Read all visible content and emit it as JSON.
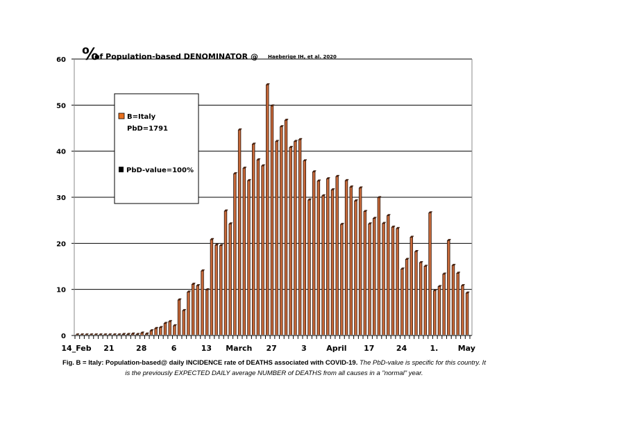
{
  "chart_data": {
    "type": "bar",
    "title_symbol": "%",
    "title": "of Population-based DENOMINATOR @",
    "title_citation": "Haeberige IH, et al. 2020",
    "ylim": [
      0,
      60
    ],
    "yticks": [
      0,
      10,
      20,
      30,
      40,
      50,
      60
    ],
    "grid": true,
    "xtick_labels": [
      {
        "index": 0,
        "label": "14_Feb"
      },
      {
        "index": 7,
        "label": "21"
      },
      {
        "index": 14,
        "label": "28"
      },
      {
        "index": 21,
        "label": "6"
      },
      {
        "index": 28,
        "label": "13"
      },
      {
        "index": 35,
        "label": "March"
      },
      {
        "index": 42,
        "label": "27"
      },
      {
        "index": 49,
        "label": "3"
      },
      {
        "index": 56,
        "label": "April"
      },
      {
        "index": 63,
        "label": "17"
      },
      {
        "index": 70,
        "label": "24"
      },
      {
        "index": 77,
        "label": "1."
      },
      {
        "index": 84,
        "label": "May"
      }
    ],
    "values": [
      0,
      0,
      0,
      0,
      0,
      0,
      0,
      0,
      0.1,
      0.1,
      0.2,
      0.2,
      0.3,
      0.2,
      0.5,
      0.3,
      1.0,
      1.5,
      1.7,
      2.6,
      3.0,
      2.1,
      7.7,
      5.4,
      9.4,
      11.1,
      10.8,
      14.0,
      9.9,
      20.8,
      19.6,
      19.5,
      27.0,
      24.2,
      35.1,
      44.6,
      36.3,
      33.6,
      41.5,
      38.1,
      36.8,
      54.4,
      49.8,
      42.1,
      45.3,
      46.7,
      40.8,
      42.1,
      42.5,
      37.9,
      29.4,
      35.5,
      33.5,
      30.3,
      34.0,
      31.6,
      34.5,
      24.1,
      33.6,
      32.2,
      29.2,
      32.0,
      26.9,
      24.2,
      25.4,
      29.9,
      24.3,
      26.0,
      23.5,
      23.2,
      14.4,
      16.5,
      21.3,
      18.2,
      15.8,
      15.0,
      26.6,
      9.7,
      10.6,
      13.3,
      20.6,
      15.2,
      13.5,
      10.8,
      9.2
    ],
    "legend": {
      "placement": "top-left",
      "entries": [
        {
          "label": "B=Italy",
          "sublabel": "PbD=1791",
          "color": "#e8701e"
        },
        {
          "label": "PbD-value=100%",
          "color": "#000000"
        }
      ]
    },
    "colors": {
      "bar_fill": "#c86a3a",
      "bar_edge": "#2a1208"
    }
  },
  "caption": {
    "bold": "Fig. B = Italy: Population-based@ daily INCIDENCE rate of DEATHS associated with COVID-19.",
    "italic": "The PbD-value is specific for this country. It is the previously EXPECTED DAILY average NUMBER of DEATHS from all causes in a \"normal\" year."
  }
}
